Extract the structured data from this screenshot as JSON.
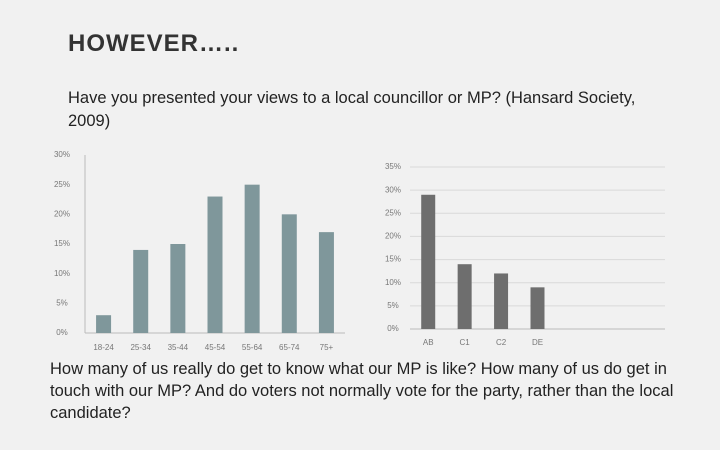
{
  "slide": {
    "title": "HOWEVER…..",
    "question": "Have you presented your views to a local councillor or MP? (Hansard Society, 2009)",
    "footer": "How many of us really do get to know what our MP is like? How many of us do get in touch with our MP? And do voters not normally vote for the party, rather than the local candidate?"
  },
  "chart_data": [
    {
      "type": "bar",
      "categories": [
        "18-24",
        "25-34",
        "35-44",
        "45-54",
        "55-64",
        "65-74",
        "75+"
      ],
      "values": [
        3,
        14,
        15,
        23,
        25,
        20,
        17
      ],
      "color": "#7f979b",
      "ylim": [
        0,
        30
      ],
      "yticks": [
        {
          "value": 0,
          "label": "0%"
        },
        {
          "value": 5,
          "label": "5%"
        },
        {
          "value": 10,
          "label": "10%"
        },
        {
          "value": 15,
          "label": "15%"
        },
        {
          "value": 20,
          "label": "20%"
        },
        {
          "value": 25,
          "label": "25%"
        },
        {
          "value": 30,
          "label": "30%"
        }
      ],
      "grid": false
    },
    {
      "type": "bar",
      "categories": [
        "AB",
        "C1",
        "C2",
        "DE",
        null,
        null,
        null
      ],
      "values": [
        29,
        14,
        12,
        9,
        null,
        null,
        null
      ],
      "color": "#6e6e6e",
      "ylim": [
        0,
        35
      ],
      "yticks": [
        {
          "value": 0,
          "label": "0%"
        },
        {
          "value": 5,
          "label": "5%"
        },
        {
          "value": 10,
          "label": "10%"
        },
        {
          "value": 15,
          "label": "15%"
        },
        {
          "value": 20,
          "label": "20%"
        },
        {
          "value": 25,
          "label": "25%"
        },
        {
          "value": 30,
          "label": "30%"
        },
        {
          "value": 35,
          "label": "35%"
        }
      ],
      "grid": true
    }
  ]
}
